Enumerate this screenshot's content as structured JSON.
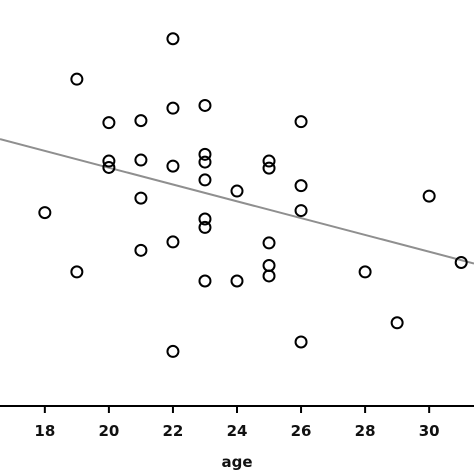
{
  "chart_data": {
    "type": "scatter",
    "title": "",
    "xlabel": "age",
    "ylabel": "",
    "xlim": [
      16.6,
      31.4
    ],
    "ylim": [
      0,
      12.05
    ],
    "grid": false,
    "legend": "none",
    "x_ticks": [
      18,
      20,
      22,
      24,
      26,
      28,
      30
    ],
    "marker": "open-circle",
    "colors": {
      "marker": "#000000",
      "axis": "#000000",
      "trend": "#8f8f8f"
    },
    "points": [
      {
        "x": 22,
        "y": 10.9
      },
      {
        "x": 19,
        "y": 9.7
      },
      {
        "x": 23,
        "y": 8.92
      },
      {
        "x": 22,
        "y": 8.84
      },
      {
        "x": 20,
        "y": 8.41
      },
      {
        "x": 21,
        "y": 8.47
      },
      {
        "x": 26,
        "y": 8.44
      },
      {
        "x": 23,
        "y": 7.47
      },
      {
        "x": 20,
        "y": 7.27
      },
      {
        "x": 21,
        "y": 7.3
      },
      {
        "x": 20,
        "y": 7.08
      },
      {
        "x": 22,
        "y": 7.12
      },
      {
        "x": 23,
        "y": 7.24
      },
      {
        "x": 25,
        "y": 7.27
      },
      {
        "x": 25,
        "y": 7.06
      },
      {
        "x": 23,
        "y": 6.71
      },
      {
        "x": 24,
        "y": 6.38
      },
      {
        "x": 26,
        "y": 6.54
      },
      {
        "x": 30,
        "y": 6.23
      },
      {
        "x": 21,
        "y": 6.17
      },
      {
        "x": 18,
        "y": 5.74
      },
      {
        "x": 26,
        "y": 5.8
      },
      {
        "x": 23,
        "y": 5.55
      },
      {
        "x": 23,
        "y": 5.3
      },
      {
        "x": 22,
        "y": 4.87
      },
      {
        "x": 25,
        "y": 4.84
      },
      {
        "x": 21,
        "y": 4.62
      },
      {
        "x": 25,
        "y": 4.17
      },
      {
        "x": 19,
        "y": 3.98
      },
      {
        "x": 28,
        "y": 3.98
      },
      {
        "x": 25,
        "y": 3.86
      },
      {
        "x": 23,
        "y": 3.71
      },
      {
        "x": 24,
        "y": 3.71
      },
      {
        "x": 31,
        "y": 4.26
      },
      {
        "x": 29,
        "y": 2.47
      },
      {
        "x": 26,
        "y": 1.9
      },
      {
        "x": 22,
        "y": 1.62
      }
    ],
    "trendline": {
      "x": [
        16.6,
        31.4
      ],
      "y": [
        7.92,
        4.23
      ]
    }
  }
}
